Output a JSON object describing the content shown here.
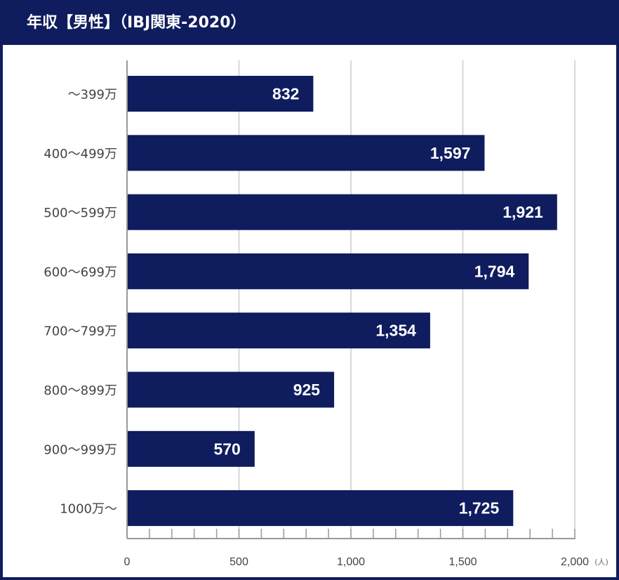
{
  "title": "年収【男性】（IBJ関東-2020）",
  "colors": {
    "header": "#0f1c5e",
    "bar": "#0f1c5e",
    "grid": "#cccccc",
    "axis": "#999999"
  },
  "chart_data": {
    "type": "bar",
    "orientation": "horizontal",
    "categories": [
      "～399万",
      "400～499万",
      "500～599万",
      "600～699万",
      "700～799万",
      "800～899万",
      "900～999万",
      "1000万～"
    ],
    "values": [
      832,
      1597,
      1921,
      1794,
      1354,
      925,
      570,
      1725
    ],
    "value_labels": [
      "832",
      "1,597",
      "1,921",
      "1,794",
      "1,354",
      "925",
      "570",
      "1,725"
    ],
    "xlim": [
      0,
      2000
    ],
    "x_ticks": [
      0,
      500,
      1000,
      1500,
      2000
    ],
    "x_tick_labels": [
      "0",
      "500",
      "1,000",
      "1,500",
      "2,000"
    ],
    "x_unit": "(人)",
    "grid": true
  }
}
